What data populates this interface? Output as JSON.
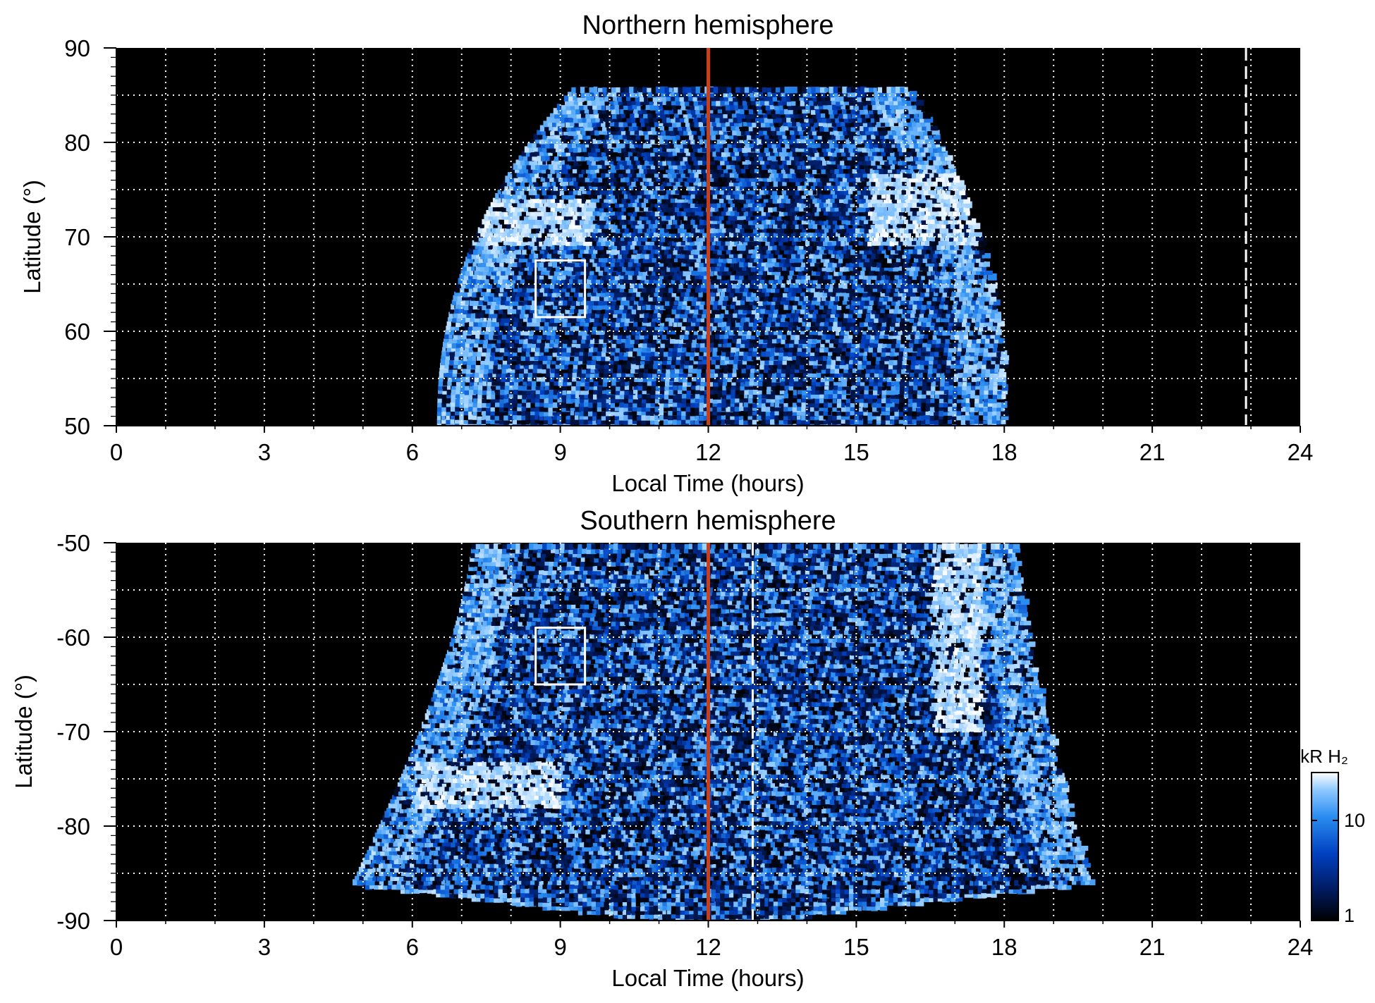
{
  "chart_data": [
    {
      "type": "heatmap",
      "title": "Northern hemisphere",
      "xlabel": "Local Time (hours)",
      "ylabel": "Latitude (°)",
      "xlim": [
        0,
        24
      ],
      "ylim": [
        50,
        90
      ],
      "x_ticks": [
        0,
        3,
        6,
        9,
        12,
        15,
        18,
        21,
        24
      ],
      "x_tick_labels": [
        "0",
        "3",
        "6",
        "9",
        "12",
        "15",
        "18",
        "21",
        "24"
      ],
      "y_ticks": [
        50,
        60,
        70,
        80,
        90
      ],
      "y_tick_labels": [
        "50",
        "60",
        "70",
        "80",
        "90"
      ],
      "grid": true,
      "grid_x_step": 1,
      "grid_y_step": 5,
      "emission_extent": {
        "lt_min": 6.5,
        "lt_max": 18.0,
        "lat_min": 50,
        "lat_max": 86
      },
      "bright_bands": [
        {
          "lt_range": [
            7.2,
            9.6
          ],
          "lat_range": [
            69,
            74
          ]
        },
        {
          "lt_range": [
            15.2,
            17.5
          ],
          "lat_range": [
            69,
            77
          ]
        }
      ],
      "noon_line_lt": 12,
      "dashed_line_lt": 22.9,
      "box": {
        "lt_range": [
          8.5,
          9.5
        ],
        "lat_range": [
          61.5,
          67.5
        ]
      }
    },
    {
      "type": "heatmap",
      "title": "Southern hemisphere",
      "xlabel": "Local Time (hours)",
      "ylabel": "Latitude (°)",
      "xlim": [
        0,
        24
      ],
      "ylim": [
        -90,
        -50
      ],
      "x_ticks": [
        0,
        3,
        6,
        9,
        12,
        15,
        18,
        21,
        24
      ],
      "x_tick_labels": [
        "0",
        "3",
        "6",
        "9",
        "12",
        "15",
        "18",
        "21",
        "24"
      ],
      "y_ticks": [
        -90,
        -80,
        -70,
        -60,
        -50
      ],
      "y_tick_labels": [
        "-90",
        "-80",
        "-70",
        "-60",
        "-50"
      ],
      "grid": true,
      "grid_x_step": 1,
      "grid_y_step": 5,
      "emission_extent": {
        "lt_min": 4.5,
        "lt_max": 20.0,
        "lat_min": -90,
        "lat_max": -50
      },
      "bright_bands": [
        {
          "lt_range": [
            6.0,
            9.0
          ],
          "lat_range": [
            -78,
            -73
          ]
        },
        {
          "lt_range": [
            16.5,
            17.5
          ],
          "lat_range": [
            -70,
            -50
          ]
        }
      ],
      "noon_line_lt": 12,
      "dashed_line_lt": 12.9,
      "box": {
        "lt_range": [
          8.5,
          9.5
        ],
        "lat_range": [
          -65,
          -59
        ]
      }
    }
  ],
  "colorbar": {
    "label": "kR H₂",
    "scale": "log",
    "range": [
      1,
      30
    ],
    "tick_labels": [
      "1",
      "10"
    ],
    "colors": [
      "#000000",
      "#001a5c",
      "#0040c0",
      "#2a8cf0",
      "#8cc8ff",
      "#ffffff"
    ]
  },
  "colors": {
    "background": "#000000",
    "grid": "#ffffff",
    "noon_line": "#c8401a",
    "box": "#ffffff"
  }
}
